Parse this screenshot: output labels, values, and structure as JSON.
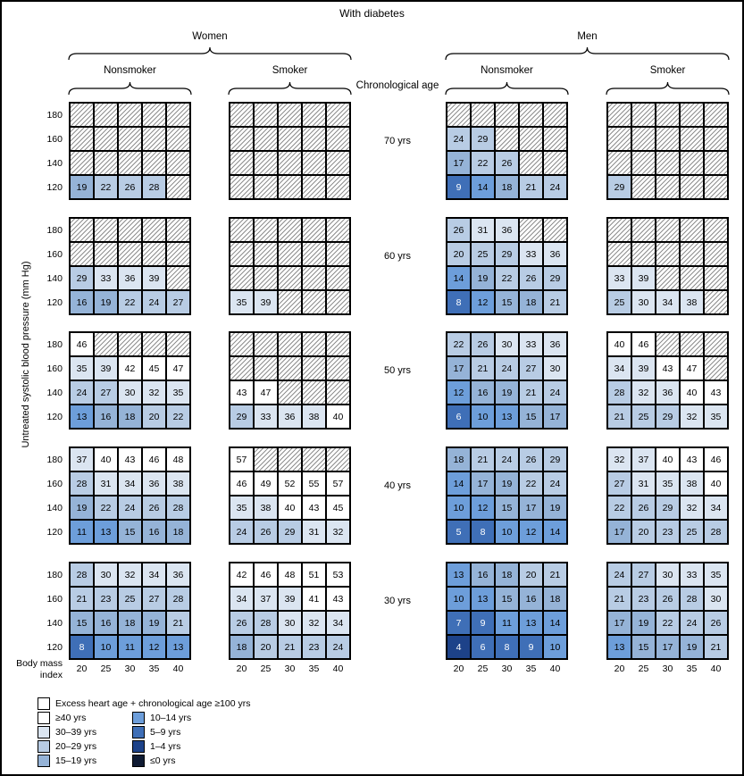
{
  "title": "With diabetes",
  "ylabel": "Untreated systolic blood pressure (mm Hg)",
  "xlabel": "Body mass index",
  "age_header": "Chronological age",
  "chart_data": {
    "type": "heatmap",
    "groups": [
      {
        "label": "Women",
        "subgroups": [
          "Nonsmoker",
          "Smoker"
        ]
      },
      {
        "label": "Men",
        "subgroups": [
          "Nonsmoker",
          "Smoker"
        ]
      }
    ],
    "ages": [
      "70 yrs",
      "60 yrs",
      "50 yrs",
      "40 yrs",
      "30 yrs"
    ],
    "rows_bp": [
      "180",
      "160",
      "140",
      "120"
    ],
    "cols_bmi": [
      "20",
      "25",
      "30",
      "35",
      "40"
    ],
    "hatched_meaning": "Excess heart age + chronological age ≥100 yrs",
    "bins": [
      {
        "label": "≥40 yrs",
        "min": 40,
        "color": "#ffffff",
        "text": "#000000"
      },
      {
        "label": "30–39 yrs",
        "min": 30,
        "color": "#dbe5f1",
        "text": "#000000"
      },
      {
        "label": "20–29 yrs",
        "min": 20,
        "color": "#b8cce4",
        "text": "#000000"
      },
      {
        "label": "15–19 yrs",
        "min": 15,
        "color": "#95b3d7",
        "text": "#000000"
      },
      {
        "label": "10–14 yrs",
        "min": 10,
        "color": "#6d9eda",
        "text": "#000000"
      },
      {
        "label": "5–9 yrs",
        "min": 5,
        "color": "#3f6fb7",
        "text": "#ffffff"
      },
      {
        "label": "1–4 yrs",
        "min": 1,
        "color": "#1d4289",
        "text": "#ffffff"
      },
      {
        "label": "≤0 yrs",
        "min": -999,
        "color": "#0f1b33",
        "text": "#ffffff"
      }
    ],
    "grids": [
      {
        "age": "70 yrs",
        "women_nonsmoker": [
          [
            "H",
            "H",
            "H",
            "H",
            "H"
          ],
          [
            "H",
            "H",
            "H",
            "H",
            "H"
          ],
          [
            "H",
            "H",
            "H",
            "H",
            "H"
          ],
          [
            19,
            22,
            26,
            28,
            "H"
          ]
        ],
        "women_smoker": [
          [
            "H",
            "H",
            "H",
            "H",
            "H"
          ],
          [
            "H",
            "H",
            "H",
            "H",
            "H"
          ],
          [
            "H",
            "H",
            "H",
            "H",
            "H"
          ],
          [
            "H",
            "H",
            "H",
            "H",
            "H"
          ]
        ],
        "men_nonsmoker": [
          [
            "H",
            "H",
            "H",
            "H",
            "H"
          ],
          [
            24,
            29,
            "H",
            "H",
            "H"
          ],
          [
            17,
            22,
            26,
            "H",
            "H"
          ],
          [
            9,
            14,
            18,
            21,
            24
          ]
        ],
        "men_smoker": [
          [
            "H",
            "H",
            "H",
            "H",
            "H"
          ],
          [
            "H",
            "H",
            "H",
            "H",
            "H"
          ],
          [
            "H",
            "H",
            "H",
            "H",
            "H"
          ],
          [
            29,
            "H",
            "H",
            "H",
            "H"
          ]
        ]
      },
      {
        "age": "60 yrs",
        "women_nonsmoker": [
          [
            "H",
            "H",
            "H",
            "H",
            "H"
          ],
          [
            "H",
            "H",
            "H",
            "H",
            "H"
          ],
          [
            29,
            33,
            36,
            39,
            "H"
          ],
          [
            16,
            19,
            22,
            24,
            27
          ]
        ],
        "women_smoker": [
          [
            "H",
            "H",
            "H",
            "H",
            "H"
          ],
          [
            "H",
            "H",
            "H",
            "H",
            "H"
          ],
          [
            "H",
            "H",
            "H",
            "H",
            "H"
          ],
          [
            35,
            39,
            "H",
            "H",
            "H"
          ]
        ],
        "men_nonsmoker": [
          [
            26,
            31,
            36,
            "H",
            "H"
          ],
          [
            20,
            25,
            29,
            33,
            36
          ],
          [
            14,
            19,
            22,
            26,
            29
          ],
          [
            8,
            12,
            15,
            18,
            21
          ]
        ],
        "men_smoker": [
          [
            "H",
            "H",
            "H",
            "H",
            "H"
          ],
          [
            "H",
            "H",
            "H",
            "H",
            "H"
          ],
          [
            33,
            39,
            "H",
            "H",
            "H"
          ],
          [
            25,
            30,
            34,
            38,
            "H"
          ]
        ]
      },
      {
        "age": "50 yrs",
        "women_nonsmoker": [
          [
            46,
            "H",
            "H",
            "H",
            "H"
          ],
          [
            35,
            39,
            42,
            45,
            47
          ],
          [
            24,
            27,
            30,
            32,
            35
          ],
          [
            13,
            16,
            18,
            20,
            22
          ]
        ],
        "women_smoker": [
          [
            "H",
            "H",
            "H",
            "H",
            "H"
          ],
          [
            "H",
            "H",
            "H",
            "H",
            "H"
          ],
          [
            43,
            47,
            "H",
            "H",
            "H"
          ],
          [
            29,
            33,
            36,
            38,
            40
          ]
        ],
        "men_nonsmoker": [
          [
            22,
            26,
            30,
            33,
            36
          ],
          [
            17,
            21,
            24,
            27,
            30
          ],
          [
            12,
            16,
            19,
            21,
            24
          ],
          [
            6,
            10,
            13,
            15,
            17
          ]
        ],
        "men_smoker": [
          [
            40,
            46,
            "H",
            "H",
            "H"
          ],
          [
            34,
            39,
            43,
            47,
            "H"
          ],
          [
            28,
            32,
            36,
            40,
            43
          ],
          [
            21,
            25,
            29,
            32,
            35
          ]
        ]
      },
      {
        "age": "40 yrs",
        "women_nonsmoker": [
          [
            37,
            40,
            43,
            46,
            48
          ],
          [
            28,
            31,
            34,
            36,
            38
          ],
          [
            19,
            22,
            24,
            26,
            28
          ],
          [
            11,
            13,
            15,
            16,
            18
          ]
        ],
        "women_smoker": [
          [
            57,
            "H",
            "H",
            "H",
            "H"
          ],
          [
            46,
            49,
            52,
            55,
            57
          ],
          [
            35,
            38,
            40,
            43,
            45
          ],
          [
            24,
            26,
            29,
            31,
            32
          ]
        ],
        "men_nonsmoker": [
          [
            18,
            21,
            24,
            26,
            29
          ],
          [
            14,
            17,
            19,
            22,
            24
          ],
          [
            10,
            12,
            15,
            17,
            19
          ],
          [
            5,
            8,
            10,
            12,
            14
          ]
        ],
        "men_smoker": [
          [
            32,
            37,
            40,
            43,
            46
          ],
          [
            27,
            31,
            35,
            38,
            40
          ],
          [
            22,
            26,
            29,
            32,
            34
          ],
          [
            17,
            20,
            23,
            25,
            28
          ]
        ]
      },
      {
        "age": "30 yrs",
        "women_nonsmoker": [
          [
            28,
            30,
            32,
            34,
            36
          ],
          [
            21,
            23,
            25,
            27,
            28
          ],
          [
            15,
            16,
            18,
            19,
            21
          ],
          [
            8,
            10,
            11,
            12,
            13
          ]
        ],
        "women_smoker": [
          [
            42,
            46,
            48,
            51,
            53
          ],
          [
            34,
            37,
            39,
            41,
            43
          ],
          [
            26,
            28,
            30,
            32,
            34
          ],
          [
            18,
            20,
            21,
            23,
            24
          ]
        ],
        "men_nonsmoker": [
          [
            13,
            16,
            18,
            20,
            21
          ],
          [
            10,
            13,
            15,
            16,
            18
          ],
          [
            7,
            9,
            11,
            13,
            14
          ],
          [
            4,
            6,
            8,
            9,
            10
          ]
        ],
        "men_smoker": [
          [
            24,
            27,
            30,
            33,
            35
          ],
          [
            21,
            23,
            26,
            28,
            30
          ],
          [
            17,
            19,
            22,
            24,
            26
          ],
          [
            13,
            15,
            17,
            19,
            21
          ]
        ]
      }
    ]
  }
}
